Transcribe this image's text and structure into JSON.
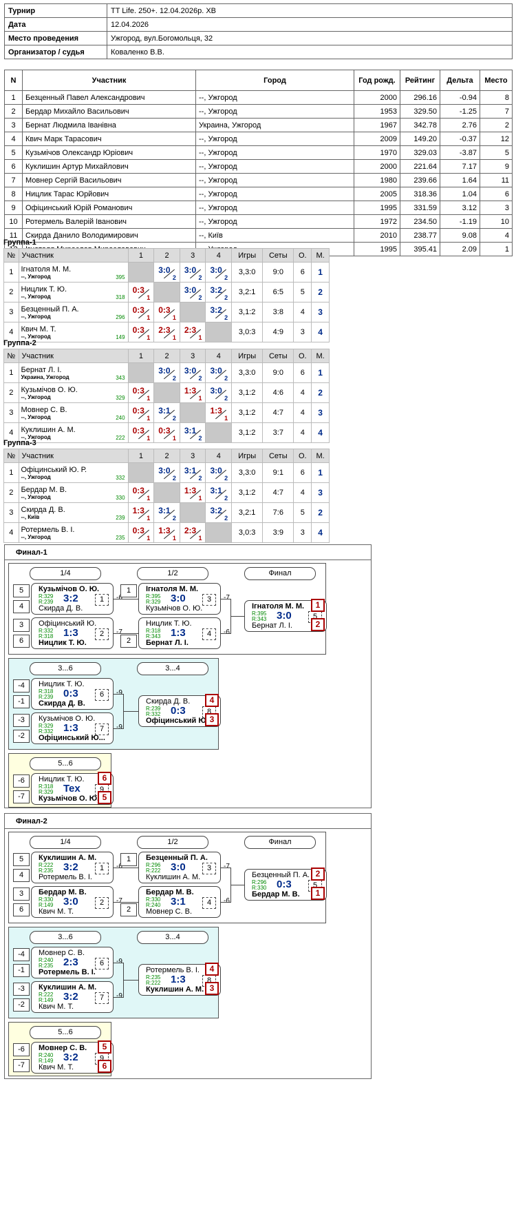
{
  "info": [
    {
      "k": "Турнир",
      "v": "TT Life. 250+. 12.04.2026р. ХВ"
    },
    {
      "k": "Дата",
      "v": "12.04.2026"
    },
    {
      "k": "Место проведения",
      "v": "Ужгород, вул.Богомольця, 32"
    },
    {
      "k": "Организатор / судья",
      "v": "Коваленко В.В."
    }
  ],
  "plist": {
    "headers": [
      "N",
      "Участник",
      "Город",
      "Год рожд.",
      "Рейтинг",
      "Дельта",
      "Место"
    ],
    "rows": [
      [
        "1",
        "Безценный Павел Александрович",
        "--, Ужгород",
        "2000",
        "296.16",
        "-0.94",
        "8"
      ],
      [
        "2",
        "Бердар Михайло Васильович",
        "--, Ужгород",
        "1953",
        "329.50",
        "-1.25",
        "7"
      ],
      [
        "3",
        "Бернат Людмила Іванівна",
        "Украина, Ужгород",
        "1967",
        "342.78",
        "2.76",
        "2"
      ],
      [
        "4",
        "Квич Марк Тарасович",
        "--, Ужгород",
        "2009",
        "149.20",
        "-0.37",
        "12"
      ],
      [
        "5",
        "Кузьмічов Олександр Юріович",
        "--, Ужгород",
        "1970",
        "329.03",
        "-3.87",
        "5"
      ],
      [
        "6",
        "Куклишин Артур Михайлович",
        "--, Ужгород",
        "2000",
        "221.64",
        "7.17",
        "9"
      ],
      [
        "7",
        "Мовнер Сергій Васильович",
        "--, Ужгород",
        "1980",
        "239.66",
        "1.64",
        "11"
      ],
      [
        "8",
        "Ницлик Тарас Юрйович",
        "--, Ужгород",
        "2005",
        "318.36",
        "1.04",
        "6"
      ],
      [
        "9",
        "Офіцинський Юрій Романович",
        "--, Ужгород",
        "1995",
        "331.59",
        "3.12",
        "3"
      ],
      [
        "10",
        "Ротермель Валерій Іванович",
        "--, Ужгород",
        "1972",
        "234.50",
        "-1.19",
        "10"
      ],
      [
        "11",
        "Скирда Данило Володимирович",
        "--, Київ",
        "2010",
        "238.77",
        "9.08",
        "4"
      ],
      [
        "12",
        "Ігнатоля Мирослав Мирославович",
        "--, Ужгород",
        "1995",
        "395.41",
        "2.09",
        "1"
      ]
    ]
  },
  "group_headers": [
    "№",
    "Участник",
    "1",
    "2",
    "3",
    "4",
    "Игры",
    "Сеты",
    "О.",
    "М."
  ],
  "groups": [
    {
      "title": "Группа-1",
      "rows": [
        {
          "n": "1",
          "name": "Ігнатоля М. М.",
          "city": "--, Ужгород",
          "rating": "395",
          "cells": [
            null,
            {
              "s": "3:0",
              "p": "2",
              "w": 1
            },
            {
              "s": "3:0",
              "p": "2",
              "w": 1
            },
            {
              "s": "3:0",
              "p": "2",
              "w": 1
            }
          ],
          "games": "3,3:0",
          "sets": "9:0",
          "pts": "6",
          "place": "1"
        },
        {
          "n": "2",
          "name": "Ницлик Т. Ю.",
          "city": "--, Ужгород",
          "rating": "318",
          "cells": [
            {
              "s": "0:3",
              "p": "1",
              "w": 0
            },
            null,
            {
              "s": "3:0",
              "p": "2",
              "w": 1
            },
            {
              "s": "3:2",
              "p": "2",
              "w": 1
            }
          ],
          "games": "3,2:1",
          "sets": "6:5",
          "pts": "5",
          "place": "2"
        },
        {
          "n": "3",
          "name": "Безценный П. А.",
          "city": "--, Ужгород",
          "rating": "296",
          "cells": [
            {
              "s": "0:3",
              "p": "1",
              "w": 0
            },
            {
              "s": "0:3",
              "p": "1",
              "w": 0
            },
            null,
            {
              "s": "3:2",
              "p": "2",
              "w": 1
            }
          ],
          "games": "3,1:2",
          "sets": "3:8",
          "pts": "4",
          "place": "3"
        },
        {
          "n": "4",
          "name": "Квич М. Т.",
          "city": "--, Ужгород",
          "rating": "149",
          "cells": [
            {
              "s": "0:3",
              "p": "1",
              "w": 0
            },
            {
              "s": "2:3",
              "p": "1",
              "w": 0
            },
            {
              "s": "2:3",
              "p": "1",
              "w": 0
            },
            null
          ],
          "games": "3,0:3",
          "sets": "4:9",
          "pts": "3",
          "place": "4"
        }
      ]
    },
    {
      "title": "Группа-2",
      "rows": [
        {
          "n": "1",
          "name": "Бернат Л. І.",
          "city": "Украина, Ужгород",
          "rating": "343",
          "cells": [
            null,
            {
              "s": "3:0",
              "p": "2",
              "w": 1
            },
            {
              "s": "3:0",
              "p": "2",
              "w": 1
            },
            {
              "s": "3:0",
              "p": "2",
              "w": 1
            }
          ],
          "games": "3,3:0",
          "sets": "9:0",
          "pts": "6",
          "place": "1"
        },
        {
          "n": "2",
          "name": "Кузьмічов О. Ю.",
          "city": "--, Ужгород",
          "rating": "329",
          "cells": [
            {
              "s": "0:3",
              "p": "1",
              "w": 0
            },
            null,
            {
              "s": "1:3",
              "p": "1",
              "w": 0
            },
            {
              "s": "3:0",
              "p": "2",
              "w": 1
            }
          ],
          "games": "3,1:2",
          "sets": "4:6",
          "pts": "4",
          "place": "2"
        },
        {
          "n": "3",
          "name": "Мовнер С. В.",
          "city": "--, Ужгород",
          "rating": "240",
          "cells": [
            {
              "s": "0:3",
              "p": "1",
              "w": 0
            },
            {
              "s": "3:1",
              "p": "2",
              "w": 1
            },
            null,
            {
              "s": "1:3",
              "p": "1",
              "w": 0
            }
          ],
          "games": "3,1:2",
          "sets": "4:7",
          "pts": "4",
          "place": "3"
        },
        {
          "n": "4",
          "name": "Куклишин А. М.",
          "city": "--, Ужгород",
          "rating": "222",
          "cells": [
            {
              "s": "0:3",
              "p": "1",
              "w": 0
            },
            {
              "s": "0:3",
              "p": "1",
              "w": 0
            },
            {
              "s": "3:1",
              "p": "2",
              "w": 1
            },
            null
          ],
          "games": "3,1:2",
          "sets": "3:7",
          "pts": "4",
          "place": "4"
        }
      ]
    },
    {
      "title": "Группа-3",
      "rows": [
        {
          "n": "1",
          "name": "Офіцинський Ю. Р.",
          "city": "--, Ужгород",
          "rating": "332",
          "cells": [
            null,
            {
              "s": "3:0",
              "p": "2",
              "w": 1
            },
            {
              "s": "3:1",
              "p": "2",
              "w": 1
            },
            {
              "s": "3:0",
              "p": "2",
              "w": 1
            }
          ],
          "games": "3,3:0",
          "sets": "9:1",
          "pts": "6",
          "place": "1"
        },
        {
          "n": "2",
          "name": "Бердар М. В.",
          "city": "--, Ужгород",
          "rating": "330",
          "cells": [
            {
              "s": "0:3",
              "p": "1",
              "w": 0
            },
            null,
            {
              "s": "1:3",
              "p": "1",
              "w": 0
            },
            {
              "s": "3:1",
              "p": "2",
              "w": 1
            }
          ],
          "games": "3,1:2",
          "sets": "4:7",
          "pts": "4",
          "place": "3"
        },
        {
          "n": "3",
          "name": "Скирда Д. В.",
          "city": "--, Київ",
          "rating": "239",
          "cells": [
            {
              "s": "1:3",
              "p": "1",
              "w": 0
            },
            {
              "s": "3:1",
              "p": "2",
              "w": 1
            },
            null,
            {
              "s": "3:2",
              "p": "2",
              "w": 1
            }
          ],
          "games": "3,2:1",
          "sets": "7:6",
          "pts": "5",
          "place": "2"
        },
        {
          "n": "4",
          "name": "Ротермель В. І.",
          "city": "--, Ужгород",
          "rating": "235",
          "cells": [
            {
              "s": "0:3",
              "p": "1",
              "w": 0
            },
            {
              "s": "1:3",
              "p": "1",
              "w": 0
            },
            {
              "s": "2:3",
              "p": "1",
              "w": 0
            },
            null
          ],
          "games": "3,0:3",
          "sets": "3:9",
          "pts": "3",
          "place": "4"
        }
      ]
    }
  ],
  "finals": [
    {
      "title": "Финал-1",
      "round_labels": {
        "r4": "1/4",
        "r2": "1/2",
        "f": "Финал",
        "b36": "3...6",
        "b34": "3...4",
        "b56": "5...6"
      },
      "matches": {
        "q1": {
          "seed1": "5",
          "seed2": "4",
          "p1": "Кузьмічов О. Ю.",
          "p2": "Скирда Д. В.",
          "r1": "R:329",
          "r2": "R:239",
          "score": "3:2",
          "num": "1",
          "w": 1,
          "ref": "-6"
        },
        "q2": {
          "seed1": "3",
          "seed2": "6",
          "p1": "Офіцинський Ю.",
          "p2": "Ницлик Т. Ю.",
          "r1": "R:332",
          "r2": "R:318",
          "score": "1:3",
          "num": "2",
          "w": 2,
          "ref": "-7"
        },
        "s1": {
          "seed1": "1",
          "p1": "Ігнатоля М. М.",
          "p2": "Кузьмічов О. Ю.",
          "r1": "R:395",
          "r2": "R:329",
          "score": "3:0",
          "num": "3",
          "w": 1,
          "ref": "-7"
        },
        "s2": {
          "seed2": "2",
          "p1": "Ницлик Т. Ю.",
          "p2": "Бернат Л. І.",
          "r1": "R:318",
          "r2": "R:343",
          "score": "1:3",
          "num": "4",
          "w": 2,
          "ref": "-6"
        },
        "f": {
          "p1": "Ігнатоля М. М.",
          "p2": "Бернат Л. І.",
          "r1": "R:395",
          "r2": "R:343",
          "score": "3:0",
          "num": "5",
          "w": 1,
          "pl1": "1",
          "pl2": "2"
        },
        "c1": {
          "seed1": "-4",
          "seed2": "-1",
          "p1": "Ницлик Т. Ю.",
          "p2": "Скирда Д. В.",
          "r1": "R:318",
          "r2": "R:239",
          "score": "0:3",
          "num": "6",
          "w": 2,
          "ref": "-9"
        },
        "c2": {
          "seed1": "-3",
          "seed2": "-2",
          "p1": "Кузьмічов О. Ю.",
          "p2": "Офіцинський Ю...",
          "r1": "R:329",
          "r2": "R:332",
          "score": "1:3",
          "num": "7",
          "w": 2,
          "ref": "-9"
        },
        "c3": {
          "p1": "Скирда Д. В.",
          "p2": "Офіцинський Ю...",
          "r1": "R:239",
          "r2": "R:332",
          "score": "0:3",
          "num": "8",
          "w": 2,
          "pl1": "4",
          "pl2": "3"
        },
        "c4": {
          "seed1": "-6",
          "seed2": "-7",
          "p1": "Ницлик Т. Ю.",
          "p2": "Кузьмічов О. Ю.",
          "r1": "R:318",
          "r2": "R:329",
          "score": "Tex",
          "num": "9",
          "w": 2,
          "pl1": "6",
          "pl2": "5"
        }
      }
    },
    {
      "title": "Финал-2",
      "round_labels": {
        "r4": "1/4",
        "r2": "1/2",
        "f": "Финал",
        "b36": "3...6",
        "b34": "3...4",
        "b56": "5...6"
      },
      "matches": {
        "q1": {
          "seed1": "5",
          "seed2": "4",
          "p1": "Куклишин А. М.",
          "p2": "Ротермель В. І.",
          "r1": "R:222",
          "r2": "R:235",
          "score": "3:2",
          "num": "1",
          "w": 1,
          "ref": "-6"
        },
        "q2": {
          "seed1": "3",
          "seed2": "6",
          "p1": "Бердар М. В.",
          "p2": "Квич М. Т.",
          "r1": "R:330",
          "r2": "R:149",
          "score": "3:0",
          "num": "2",
          "w": 1,
          "ref": "-7"
        },
        "s1": {
          "seed1": "1",
          "p1": "Безценный П. А.",
          "p2": "Куклишин А. М.",
          "r1": "R:296",
          "r2": "R:222",
          "score": "3:0",
          "num": "3",
          "w": 1,
          "ref": "-7"
        },
        "s2": {
          "seed2": "2",
          "p1": "Бердар М. В.",
          "p2": "Мовнер С. В.",
          "r1": "R:330",
          "r2": "R:240",
          "score": "3:1",
          "num": "4",
          "w": 1,
          "ref": "-6"
        },
        "f": {
          "p1": "Безценный П. А.",
          "p2": "Бердар М. В.",
          "r1": "R:296",
          "r2": "R:330",
          "score": "0:3",
          "num": "5",
          "w": 2,
          "pl1": "2",
          "pl2": "1"
        },
        "c1": {
          "seed1": "-4",
          "seed2": "-1",
          "p1": "Мовнер С. В.",
          "p2": "Ротермель В. І.",
          "r1": "R:240",
          "r2": "R:235",
          "score": "2:3",
          "num": "6",
          "w": 2,
          "ref": "-9"
        },
        "c2": {
          "seed1": "-3",
          "seed2": "-2",
          "p1": "Куклишин А. М.",
          "p2": "Квич М. Т.",
          "r1": "R:222",
          "r2": "R:149",
          "score": "3:2",
          "num": "7",
          "w": 1,
          "ref": "-9"
        },
        "c3": {
          "p1": "Ротермель В. І.",
          "p2": "Куклишин А. М.",
          "r1": "R:235",
          "r2": "R:222",
          "score": "1:3",
          "num": "8",
          "w": 2,
          "pl1": "4",
          "pl2": "3"
        },
        "c4": {
          "seed1": "-6",
          "seed2": "-7",
          "p1": "Мовнер С. В.",
          "p2": "Квич М. Т.",
          "r1": "R:240",
          "r2": "R:149",
          "score": "3:2",
          "num": "9",
          "w": 1,
          "pl1": "5",
          "pl2": "6"
        }
      }
    }
  ]
}
